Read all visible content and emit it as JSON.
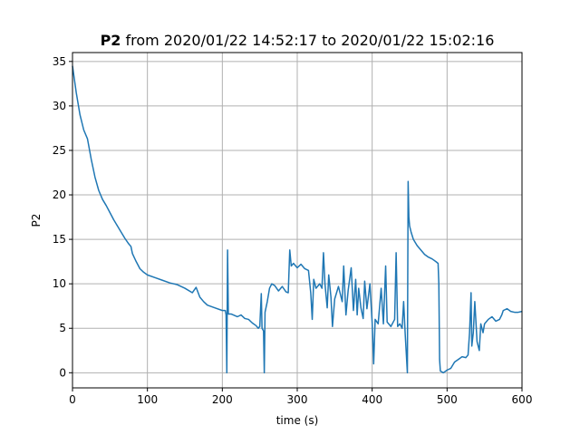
{
  "chart_data": {
    "type": "line",
    "title_bold": "P2",
    "title_rest": " from 2020/01/22 14:52:17 to 2020/01/22 15:02:16",
    "xlabel": "time (s)",
    "ylabel": "P2",
    "xlim": [
      0,
      600
    ],
    "ylim": [
      -1.7,
      36
    ],
    "xticks": [
      0,
      100,
      200,
      300,
      400,
      500,
      600
    ],
    "yticks": [
      0,
      5,
      10,
      15,
      20,
      25,
      30,
      35
    ],
    "grid": true,
    "series": [
      {
        "color": "#1f77b4",
        "points": [
          [
            0,
            34.5
          ],
          [
            5,
            31.5
          ],
          [
            10,
            29.0
          ],
          [
            15,
            27.3
          ],
          [
            20,
            26.3
          ],
          [
            25,
            24.0
          ],
          [
            30,
            22.0
          ],
          [
            35,
            20.5
          ],
          [
            40,
            19.5
          ],
          [
            45,
            18.8
          ],
          [
            50,
            18.0
          ],
          [
            55,
            17.2
          ],
          [
            60,
            16.5
          ],
          [
            65,
            15.8
          ],
          [
            70,
            15.1
          ],
          [
            75,
            14.5
          ],
          [
            78,
            14.2
          ],
          [
            80,
            13.4
          ],
          [
            85,
            12.5
          ],
          [
            90,
            11.7
          ],
          [
            95,
            11.3
          ],
          [
            100,
            11.0
          ],
          [
            110,
            10.7
          ],
          [
            120,
            10.4
          ],
          [
            130,
            10.1
          ],
          [
            140,
            9.9
          ],
          [
            150,
            9.5
          ],
          [
            160,
            9.0
          ],
          [
            165,
            9.6
          ],
          [
            170,
            8.5
          ],
          [
            175,
            8.0
          ],
          [
            180,
            7.6
          ],
          [
            190,
            7.3
          ],
          [
            200,
            7.0
          ],
          [
            204,
            7.0
          ],
          [
            205,
            6.5
          ],
          [
            206,
            0.0
          ],
          [
            207,
            13.8
          ],
          [
            208,
            6.6
          ],
          [
            212,
            6.6
          ],
          [
            220,
            6.3
          ],
          [
            225,
            6.5
          ],
          [
            230,
            6.1
          ],
          [
            235,
            6.0
          ],
          [
            240,
            5.6
          ],
          [
            245,
            5.3
          ],
          [
            248,
            5.0
          ],
          [
            250,
            5.2
          ],
          [
            252,
            8.9
          ],
          [
            253,
            5.0
          ],
          [
            255,
            4.7
          ],
          [
            256,
            0.0
          ],
          [
            257,
            6.8
          ],
          [
            260,
            8.0
          ],
          [
            263,
            9.5
          ],
          [
            266,
            10.0
          ],
          [
            270,
            9.8
          ],
          [
            275,
            9.2
          ],
          [
            280,
            9.7
          ],
          [
            285,
            9.1
          ],
          [
            288,
            9.0
          ],
          [
            290,
            13.8
          ],
          [
            292,
            12.0
          ],
          [
            295,
            12.3
          ],
          [
            300,
            11.8
          ],
          [
            305,
            12.2
          ],
          [
            310,
            11.7
          ],
          [
            315,
            11.5
          ],
          [
            318,
            9.0
          ],
          [
            320,
            6.0
          ],
          [
            322,
            10.5
          ],
          [
            325,
            9.5
          ],
          [
            330,
            10.0
          ],
          [
            333,
            9.5
          ],
          [
            335,
            13.5
          ],
          [
            337,
            10.0
          ],
          [
            340,
            7.3
          ],
          [
            342,
            11.0
          ],
          [
            345,
            8.5
          ],
          [
            347,
            5.2
          ],
          [
            350,
            8.3
          ],
          [
            355,
            9.7
          ],
          [
            360,
            8.0
          ],
          [
            362,
            12.0
          ],
          [
            365,
            6.5
          ],
          [
            368,
            9.3
          ],
          [
            372,
            11.8
          ],
          [
            375,
            7.0
          ],
          [
            378,
            10.5
          ],
          [
            380,
            6.5
          ],
          [
            382,
            9.5
          ],
          [
            385,
            7.3
          ],
          [
            388,
            6.1
          ],
          [
            390,
            10.3
          ],
          [
            393,
            7.2
          ],
          [
            397,
            10.0
          ],
          [
            400,
            5.6
          ],
          [
            402,
            1.0
          ],
          [
            404,
            6.0
          ],
          [
            408,
            5.5
          ],
          [
            412,
            9.5
          ],
          [
            415,
            5.5
          ],
          [
            418,
            12.0
          ],
          [
            420,
            5.7
          ],
          [
            425,
            5.2
          ],
          [
            430,
            6.0
          ],
          [
            432,
            13.5
          ],
          [
            434,
            5.2
          ],
          [
            437,
            5.5
          ],
          [
            440,
            5.0
          ],
          [
            442,
            8.0
          ],
          [
            444,
            4.5
          ],
          [
            446,
            1.5
          ],
          [
            447,
            0.0
          ],
          [
            448,
            21.5
          ],
          [
            449,
            17.5
          ],
          [
            450,
            16.5
          ],
          [
            452,
            15.8
          ],
          [
            455,
            15.0
          ],
          [
            460,
            14.3
          ],
          [
            465,
            13.8
          ],
          [
            470,
            13.3
          ],
          [
            475,
            13.0
          ],
          [
            480,
            12.8
          ],
          [
            485,
            12.5
          ],
          [
            488,
            12.3
          ],
          [
            489,
            10.0
          ],
          [
            490,
            1.5
          ],
          [
            491,
            0.2
          ],
          [
            495,
            0.0
          ],
          [
            500,
            0.3
          ],
          [
            505,
            0.5
          ],
          [
            510,
            1.2
          ],
          [
            515,
            1.5
          ],
          [
            520,
            1.8
          ],
          [
            525,
            1.7
          ],
          [
            528,
            2.0
          ],
          [
            530,
            4.5
          ],
          [
            532,
            9.0
          ],
          [
            533,
            3.0
          ],
          [
            535,
            4.5
          ],
          [
            537,
            8.0
          ],
          [
            540,
            3.5
          ],
          [
            543,
            2.5
          ],
          [
            545,
            5.5
          ],
          [
            548,
            4.5
          ],
          [
            550,
            5.5
          ],
          [
            555,
            6.0
          ],
          [
            560,
            6.3
          ],
          [
            565,
            5.8
          ],
          [
            570,
            6.0
          ],
          [
            573,
            6.5
          ],
          [
            575,
            7.0
          ],
          [
            580,
            7.2
          ],
          [
            585,
            6.9
          ],
          [
            590,
            6.8
          ],
          [
            595,
            6.8
          ],
          [
            600,
            6.9
          ]
        ]
      }
    ]
  }
}
